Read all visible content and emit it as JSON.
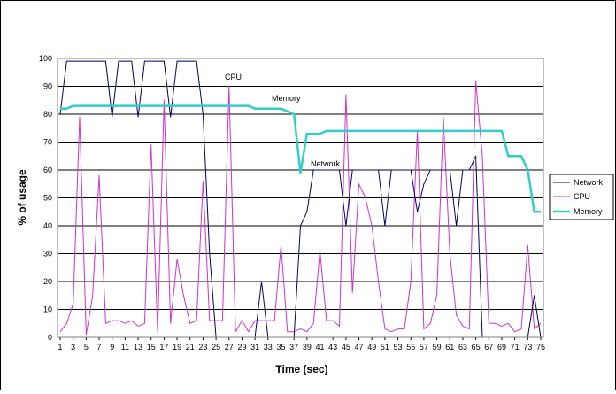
{
  "chart_data": {
    "type": "line",
    "title": "",
    "xlabel": "Time (sec)",
    "ylabel": "% of usage",
    "xlim": [
      1,
      75
    ],
    "ylim": [
      0,
      100
    ],
    "yticks": [
      0,
      10,
      20,
      30,
      40,
      50,
      60,
      70,
      80,
      90,
      100
    ],
    "xticks": [
      1,
      3,
      5,
      7,
      9,
      11,
      13,
      15,
      17,
      19,
      21,
      23,
      25,
      27,
      29,
      31,
      33,
      35,
      37,
      39,
      41,
      43,
      45,
      47,
      49,
      51,
      53,
      55,
      57,
      59,
      61,
      63,
      65,
      67,
      69,
      71,
      73,
      75
    ],
    "grid": "horizontal",
    "legend_position": "right",
    "x": [
      1,
      2,
      3,
      4,
      5,
      6,
      7,
      8,
      9,
      10,
      11,
      12,
      13,
      14,
      15,
      16,
      17,
      18,
      19,
      20,
      21,
      22,
      23,
      24,
      25,
      26,
      27,
      28,
      29,
      30,
      31,
      32,
      33,
      34,
      35,
      36,
      37,
      38,
      39,
      40,
      41,
      42,
      43,
      44,
      45,
      46,
      47,
      48,
      49,
      50,
      51,
      52,
      53,
      54,
      55,
      56,
      57,
      58,
      59,
      60,
      61,
      62,
      63,
      64,
      65,
      66,
      67,
      68,
      69,
      70,
      71,
      72,
      73,
      74,
      75
    ],
    "series": [
      {
        "name": "Network",
        "color": "#000066",
        "width": 1,
        "values": [
          80,
          99,
          99,
          99,
          99,
          99,
          99,
          99,
          79,
          99,
          99,
          99,
          79,
          99,
          99,
          99,
          99,
          79,
          99,
          99,
          99,
          99,
          80,
          30,
          0,
          0,
          0,
          0,
          0,
          0,
          0,
          20,
          0,
          0,
          0,
          0,
          0,
          40,
          45,
          60,
          60,
          60,
          60,
          60,
          40,
          60,
          60,
          60,
          60,
          60,
          40,
          60,
          60,
          60,
          60,
          45,
          55,
          60,
          60,
          60,
          60,
          40,
          60,
          60,
          65,
          0,
          0,
          0,
          0,
          0,
          0,
          0,
          0,
          15,
          0
        ]
      },
      {
        "name": "CPU",
        "color": "#cc33cc",
        "width": 1,
        "values": [
          2,
          5,
          12,
          79,
          1,
          15,
          58,
          5,
          6,
          6,
          5,
          6,
          4,
          5,
          69,
          2,
          85,
          5,
          28,
          15,
          5,
          6,
          56,
          6,
          6,
          6,
          90,
          2,
          6,
          2,
          6,
          6,
          6,
          6,
          33,
          2,
          2,
          3,
          2,
          5,
          31,
          6,
          6,
          4,
          87,
          16,
          55,
          50,
          40,
          20,
          3,
          2,
          3,
          3,
          20,
          74,
          3,
          5,
          15,
          79,
          30,
          8,
          4,
          3,
          92,
          65,
          5,
          5,
          4,
          5,
          2,
          3,
          33,
          3,
          5
        ]
      },
      {
        "name": "Memory",
        "color": "#33cccc",
        "width": 2.5,
        "values": [
          82,
          82,
          83,
          83,
          83,
          83,
          83,
          83,
          83,
          83,
          83,
          83,
          83,
          83,
          83,
          83,
          83,
          83,
          83,
          83,
          83,
          83,
          83,
          83,
          83,
          83,
          83,
          83,
          83,
          83,
          82,
          82,
          82,
          82,
          82,
          81,
          80,
          59,
          73,
          73,
          73,
          74,
          74,
          74,
          74,
          74,
          74,
          74,
          74,
          74,
          74,
          74,
          74,
          74,
          74,
          74,
          74,
          74,
          74,
          74,
          74,
          74,
          74,
          74,
          74,
          74,
          74,
          74,
          74,
          65,
          65,
          65,
          60,
          45,
          45
        ]
      }
    ],
    "annotations": [
      "CPU",
      "Memory",
      "Network"
    ]
  }
}
